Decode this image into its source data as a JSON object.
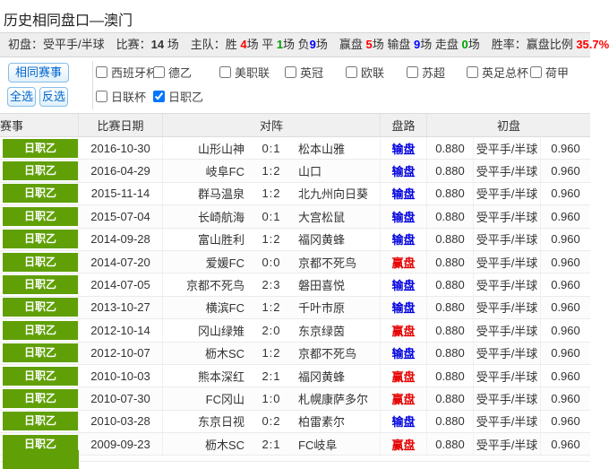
{
  "page_title": "历史相同盘口—澳门",
  "summary": {
    "segments": [
      {
        "text": "初盘：受平手/半球　"
      },
      {
        "text": "比赛："
      },
      {
        "text": "14",
        "bold": true
      },
      {
        "text": " 场　主队：胜 "
      },
      {
        "text": "4",
        "color": "#ff0000",
        "bold": true
      },
      {
        "text": "场 平 "
      },
      {
        "text": "1",
        "color": "#00a000",
        "bold": true
      },
      {
        "text": "场 负"
      },
      {
        "text": "9",
        "color": "#0000ff",
        "bold": true
      },
      {
        "text": "场　赢盘 "
      },
      {
        "text": "5",
        "color": "#ff0000",
        "bold": true
      },
      {
        "text": "场 输盘 "
      },
      {
        "text": "9",
        "color": "#0000ff",
        "bold": true
      },
      {
        "text": "场 走盘 "
      },
      {
        "text": "0",
        "color": "#00a000",
        "bold": true
      },
      {
        "text": "场　胜率：赢盘比例 "
      },
      {
        "text": "35.7%",
        "color": "#ff0000",
        "bold": true
      }
    ]
  },
  "filters": {
    "same_event_button": "相同赛事",
    "select_all_button": "全选",
    "invert_button": "反选",
    "leagues": [
      {
        "label": "西班牙杯",
        "checked": false
      },
      {
        "label": "德乙",
        "checked": false
      },
      {
        "label": "美职联",
        "checked": false
      },
      {
        "label": "英冠",
        "checked": false
      },
      {
        "label": "欧联",
        "checked": false
      },
      {
        "label": "苏超",
        "checked": false
      },
      {
        "label": "英足总杯",
        "checked": false
      },
      {
        "label": "荷甲",
        "checked": false
      },
      {
        "label": "日联杯",
        "checked": false
      },
      {
        "label": "日职乙",
        "checked": true
      }
    ]
  },
  "table": {
    "headers": {
      "league": "赛事",
      "date": "比赛日期",
      "matchup": "对阵",
      "result": "盘路",
      "initial": "初盘"
    },
    "rows": [
      {
        "league": "日职乙",
        "date": "2016-10-30",
        "home": "山形山神",
        "score": "0:1",
        "away": "松本山雅",
        "result": "输盘",
        "odds1": "0.880",
        "handicap": "受平手/半球",
        "odds2": "0.960"
      },
      {
        "league": "日职乙",
        "date": "2016-04-29",
        "home": "岐阜FC",
        "score": "1:2",
        "away": "山口",
        "result": "输盘",
        "odds1": "0.880",
        "handicap": "受平手/半球",
        "odds2": "0.960"
      },
      {
        "league": "日职乙",
        "date": "2015-11-14",
        "home": "群马温泉",
        "score": "1:2",
        "away": "北九州向日葵",
        "result": "输盘",
        "odds1": "0.880",
        "handicap": "受平手/半球",
        "odds2": "0.960"
      },
      {
        "league": "日职乙",
        "date": "2015-07-04",
        "home": "长崎航海",
        "score": "0:1",
        "away": "大宫松鼠",
        "result": "输盘",
        "odds1": "0.880",
        "handicap": "受平手/半球",
        "odds2": "0.960"
      },
      {
        "league": "日职乙",
        "date": "2014-09-28",
        "home": "富山胜利",
        "score": "1:2",
        "away": "福冈黄蜂",
        "result": "输盘",
        "odds1": "0.880",
        "handicap": "受平手/半球",
        "odds2": "0.960"
      },
      {
        "league": "日职乙",
        "date": "2014-07-20",
        "home": "爱媛FC",
        "score": "0:0",
        "away": "京都不死鸟",
        "result": "赢盘",
        "odds1": "0.880",
        "handicap": "受平手/半球",
        "odds2": "0.960"
      },
      {
        "league": "日职乙",
        "date": "2014-07-05",
        "home": "京都不死鸟",
        "score": "2:3",
        "away": "磐田喜悦",
        "result": "输盘",
        "odds1": "0.880",
        "handicap": "受平手/半球",
        "odds2": "0.960"
      },
      {
        "league": "日职乙",
        "date": "2013-10-27",
        "home": "横滨FC",
        "score": "1:2",
        "away": "千叶市原",
        "result": "输盘",
        "odds1": "0.880",
        "handicap": "受平手/半球",
        "odds2": "0.960"
      },
      {
        "league": "日职乙",
        "date": "2012-10-14",
        "home": "冈山绿雉",
        "score": "2:0",
        "away": "东京绿茵",
        "result": "赢盘",
        "odds1": "0.880",
        "handicap": "受平手/半球",
        "odds2": "0.960"
      },
      {
        "league": "日职乙",
        "date": "2012-10-07",
        "home": "枥木SC",
        "score": "1:2",
        "away": "京都不死鸟",
        "result": "输盘",
        "odds1": "0.880",
        "handicap": "受平手/半球",
        "odds2": "0.960"
      },
      {
        "league": "日职乙",
        "date": "2010-10-03",
        "home": "熊本深红",
        "score": "2:1",
        "away": "福冈黄蜂",
        "result": "赢盘",
        "odds1": "0.880",
        "handicap": "受平手/半球",
        "odds2": "0.960"
      },
      {
        "league": "日职乙",
        "date": "2010-07-30",
        "home": "FC冈山",
        "score": "1:0",
        "away": "札幌康萨多尔",
        "result": "赢盘",
        "odds1": "0.880",
        "handicap": "受平手/半球",
        "odds2": "0.960"
      },
      {
        "league": "日职乙",
        "date": "2010-03-28",
        "home": "东京日视",
        "score": "0:2",
        "away": "柏雷素尔",
        "result": "输盘",
        "odds1": "0.880",
        "handicap": "受平手/半球",
        "odds2": "0.960"
      },
      {
        "league": "日职乙",
        "date": "2009-09-23",
        "home": "枥木SC",
        "score": "2:1",
        "away": "FC岐阜",
        "result": "赢盘",
        "odds1": "0.880",
        "handicap": "受平手/半球",
        "odds2": "0.960"
      }
    ],
    "win_label": "赢盘",
    "lose_label": "输盘"
  },
  "theme": {
    "badge_green": "#60a006",
    "win_red": "#e60000",
    "lose_blue": "#0000e0",
    "button_blue": "#0066cc"
  }
}
